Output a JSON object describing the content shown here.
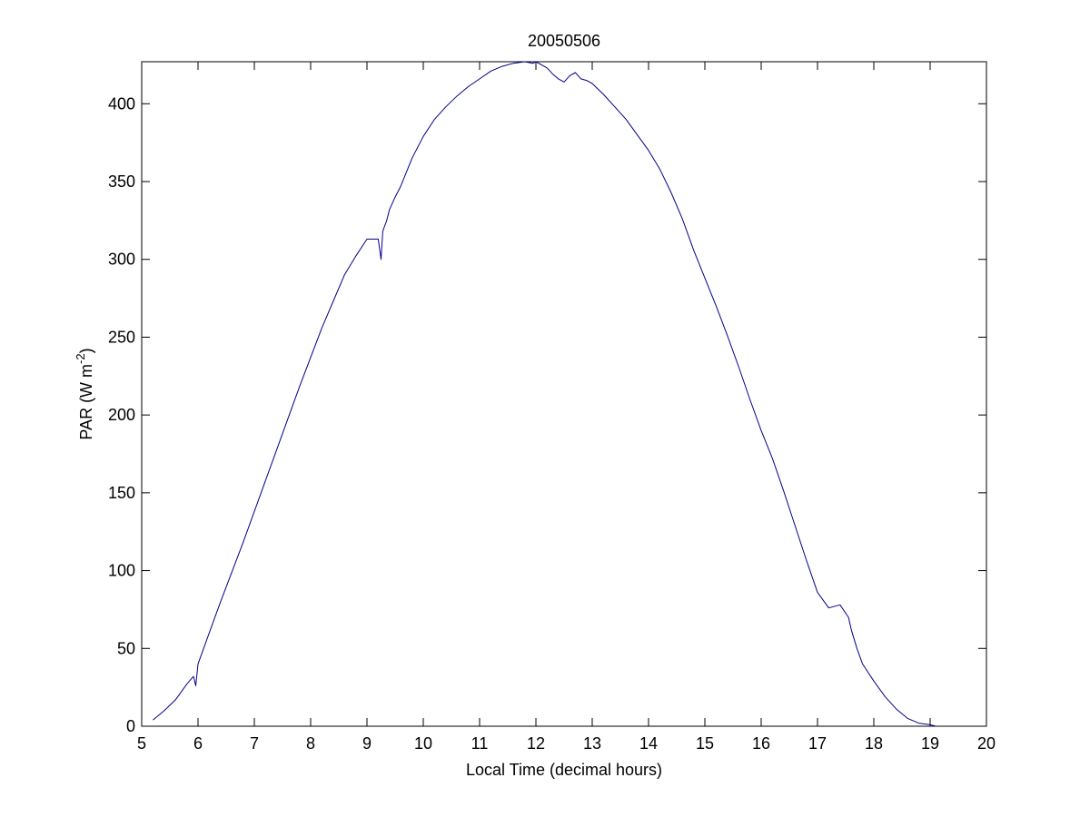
{
  "chart_data": {
    "type": "line",
    "title": "20050506",
    "xlabel": "Local Time (decimal hours)",
    "ylabel": "PAR (W m",
    "ylabel_superscript": "-2",
    "ylabel_close": ")",
    "xlim": [
      5,
      20
    ],
    "ylim": [
      0,
      427
    ],
    "xticks": [
      5,
      6,
      7,
      8,
      9,
      10,
      11,
      12,
      13,
      14,
      15,
      16,
      17,
      18,
      19,
      20
    ],
    "yticks": [
      0,
      50,
      100,
      150,
      200,
      250,
      300,
      350,
      400
    ],
    "grid": false,
    "line_color": "#00008b",
    "series": [
      {
        "x": [
          5.2,
          5.4,
          5.6,
          5.8,
          5.92,
          5.96,
          6.0,
          6.2,
          6.4,
          6.6,
          6.8,
          7.0,
          7.2,
          7.4,
          7.6,
          7.8,
          8.0,
          8.2,
          8.4,
          8.6,
          8.8,
          9.0,
          9.2,
          9.25,
          9.28,
          9.3,
          9.35,
          9.4,
          9.5,
          9.6,
          9.8,
          10.0,
          10.2,
          10.4,
          10.6,
          10.8,
          11.0,
          11.2,
          11.4,
          11.6,
          11.8,
          11.95,
          12.0,
          12.1,
          12.2,
          12.3,
          12.4,
          12.5,
          12.6,
          12.7,
          12.8,
          12.9,
          13.0,
          13.2,
          13.4,
          13.6,
          13.8,
          14.0,
          14.2,
          14.4,
          14.6,
          14.8,
          15.0,
          15.2,
          15.4,
          15.6,
          15.8,
          16.0,
          16.2,
          16.4,
          16.6,
          16.8,
          17.0,
          17.2,
          17.4,
          17.55,
          17.6,
          17.7,
          17.8,
          18.0,
          18.2,
          18.4,
          18.6,
          18.8,
          19.0,
          19.1
        ],
        "y": [
          4,
          10,
          17,
          27,
          32,
          26,
          40,
          60,
          80,
          99,
          118,
          138,
          158,
          178,
          198,
          218,
          237,
          256,
          273,
          290,
          302,
          313,
          313,
          300,
          318,
          320,
          325,
          332,
          340,
          347,
          365,
          379,
          390,
          398,
          405,
          411,
          416,
          421,
          424,
          426,
          427,
          426,
          427,
          425,
          423,
          419,
          416,
          414,
          418,
          420,
          416,
          415,
          413,
          406,
          398,
          390,
          380,
          370,
          358,
          343,
          326,
          306,
          288,
          270,
          251,
          231,
          210,
          190,
          172,
          151,
          129,
          107,
          86,
          76,
          78,
          70,
          62,
          50,
          40,
          29,
          19,
          11,
          5,
          2,
          1,
          0
        ]
      }
    ]
  }
}
